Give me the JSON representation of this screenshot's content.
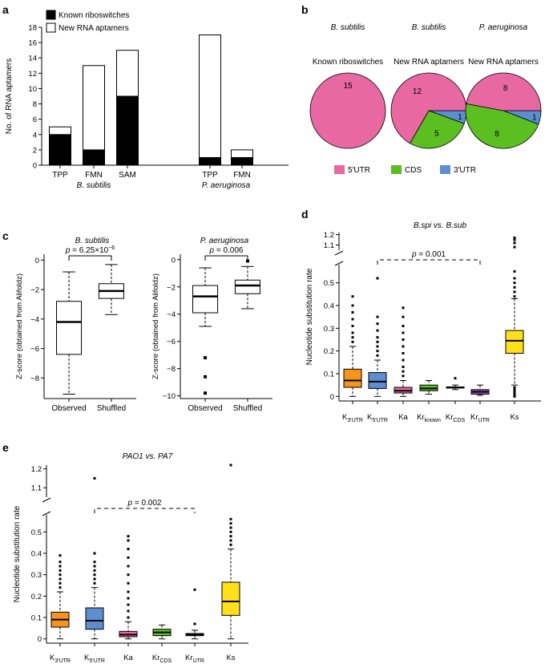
{
  "chart_data": [
    {
      "panel": "a",
      "type": "bar",
      "stacked": true,
      "ylabel": "No. of RNA aptamers",
      "ylim": [
        0,
        18
      ],
      "yticks": [
        0,
        2,
        4,
        6,
        8,
        10,
        12,
        14,
        16,
        18
      ],
      "legend": [
        "Known riboswitches",
        "New RNA aptamers"
      ],
      "legend_position": "top-left",
      "colors": {
        "known": "#000000",
        "new": "#ffffff"
      },
      "groups": [
        {
          "name": "B. subtilis",
          "categories": [
            "TPP",
            "FMN",
            "SAM"
          ]
        },
        {
          "name": "P. aeruginosa",
          "categories": [
            "TPP",
            "FMN"
          ]
        }
      ],
      "series": [
        {
          "name": "Known riboswitches",
          "values": [
            4,
            2,
            9,
            1,
            1
          ]
        },
        {
          "name": "New RNA aptamers",
          "values": [
            1,
            11,
            6,
            16,
            1
          ]
        }
      ]
    },
    {
      "panel": "b",
      "type": "pie",
      "colors": {
        "5'UTR": "#e868a2",
        "CDS": "#5bbf21",
        "3'UTR": "#5b8fcf"
      },
      "legend": [
        "5′UTR",
        "CDS",
        "3′UTR"
      ],
      "legend_position": "bottom",
      "pies": [
        {
          "species": "B. subtilis",
          "title": "Known riboswitches",
          "labels": [
            "5′UTR"
          ],
          "values": [
            15
          ]
        },
        {
          "species": "B. subtilis",
          "title": "New RNA aptamers",
          "labels": [
            "5′UTR",
            "CDS",
            "3′UTR"
          ],
          "values": [
            12,
            5,
            1
          ]
        },
        {
          "species": "P. aeruginosa",
          "title": "New RNA aptamers",
          "labels": [
            "5′UTR",
            "CDS",
            "3′UTR"
          ],
          "values": [
            8,
            8,
            1
          ]
        }
      ]
    },
    {
      "panel": "c",
      "type": "box",
      "ylabel": "Z-score (obtained from Alifoldz)",
      "categories": [
        "Observed",
        "Shuffled"
      ],
      "plots": [
        {
          "title": "B. subtilis",
          "ylim": [
            -9.4,
            0.4
          ],
          "yticks": [
            -8,
            -6,
            -4,
            -2,
            0
          ],
          "pvalue_prefix": "p",
          "pvalue_text": " = 6.25×10",
          "pvalue_exp": "−6",
          "boxes": [
            {
              "min": -9.1,
              "q1": -6.4,
              "median": -4.2,
              "q3": -2.8,
              "max": -0.8,
              "outliers": []
            },
            {
              "min": -3.7,
              "q1": -2.6,
              "median": -2.1,
              "q3": -1.6,
              "max": -0.3,
              "outliers": []
            }
          ]
        },
        {
          "title": "P. aeruginosa",
          "ylim": [
            -10.2,
            0.4
          ],
          "yticks": [
            -10,
            -8,
            -6,
            -4,
            -2,
            0
          ],
          "pvalue_prefix": "p",
          "pvalue_text": " = 0.006",
          "pvalue_exp": "",
          "boxes": [
            {
              "min": -4.9,
              "q1": -3.9,
              "median": -2.7,
              "q3": -1.9,
              "max": -0.6,
              "outliers": [
                -7.2,
                -8.6,
                -9.8
              ]
            },
            {
              "min": -3.6,
              "q1": -2.5,
              "median": -1.9,
              "q3": -1.5,
              "max": -0.5,
              "outliers": [
                -0.1
              ]
            }
          ]
        }
      ]
    },
    {
      "panel": "d",
      "type": "box",
      "title": "B.spi vs. B.sub",
      "ylabel": "Nucleotide substitution rate",
      "yticks_lower": [
        0,
        0.1,
        0.2,
        0.3,
        0.4,
        0.5
      ],
      "yticks_upper": [
        1.1,
        1.2
      ],
      "axis_break": [
        0.58,
        1.05
      ],
      "categories": [
        {
          "base": "K",
          "sub": "3′UTR"
        },
        {
          "base": "K",
          "sub": "5′UTR"
        },
        {
          "base": "Ka",
          "sub": ""
        },
        {
          "base": "Kr",
          "sub": "known"
        },
        {
          "base": "Kr",
          "sub": "CDS"
        },
        {
          "base": "Kr",
          "sub": "UTR"
        },
        {
          "base": "Ks",
          "sub": ""
        }
      ],
      "colors": [
        "#f7941d",
        "#5b8fcf",
        "#e868a2",
        "#5bbf21",
        "#ffffff",
        "#a855c8",
        "#ffe01a"
      ],
      "pvalue": {
        "prefix": "p",
        "text": " = 0.001",
        "from": 1,
        "to": 5
      },
      "boxes": [
        {
          "min": 0.0,
          "q1": 0.04,
          "median": 0.07,
          "q3": 0.12,
          "max": 0.22,
          "outliers": [
            0.24,
            0.26,
            0.28,
            0.31,
            0.34,
            0.37,
            0.4,
            0.44
          ]
        },
        {
          "min": 0.0,
          "q1": 0.035,
          "median": 0.065,
          "q3": 0.105,
          "max": 0.16,
          "outliers": [
            0.18,
            0.2,
            0.22,
            0.24,
            0.26,
            0.29,
            0.32,
            0.35,
            0.52
          ]
        },
        {
          "min": 0.0,
          "q1": 0.015,
          "median": 0.025,
          "q3": 0.04,
          "max": 0.07,
          "outliers": [
            0.09,
            0.11,
            0.13,
            0.16,
            0.19,
            0.22,
            0.25,
            0.28,
            0.31,
            0.35,
            0.39
          ]
        },
        {
          "min": 0.01,
          "q1": 0.025,
          "median": 0.035,
          "q3": 0.05,
          "max": 0.07,
          "outliers": []
        },
        {
          "min": 0.03,
          "q1": 0.04,
          "median": 0.04,
          "q3": 0.042,
          "max": 0.05,
          "outliers": [
            0.08
          ]
        },
        {
          "min": 0.005,
          "q1": 0.01,
          "median": 0.02,
          "q3": 0.03,
          "max": 0.05,
          "outliers": []
        },
        {
          "min": 0.05,
          "q1": 0.19,
          "median": 0.245,
          "q3": 0.29,
          "max": 0.43,
          "outliers": [
            0.0,
            0.01,
            0.02,
            0.03,
            0.04,
            0.44,
            0.46,
            0.48,
            0.5,
            0.52,
            0.55,
            1.08,
            1.12,
            1.15,
            1.17
          ]
        }
      ]
    },
    {
      "panel": "e",
      "type": "box",
      "title": "PAO1 vs. PA7",
      "ylabel": "Nucleotide substitution rate",
      "yticks_lower": [
        0,
        0.1,
        0.2,
        0.3,
        0.4,
        0.5
      ],
      "yticks_upper": [
        1.1,
        1.2
      ],
      "axis_break": [
        0.58,
        1.05
      ],
      "categories": [
        {
          "base": "K",
          "sub": "3′UTR"
        },
        {
          "base": "K",
          "sub": "5′UTR"
        },
        {
          "base": "Ka",
          "sub": ""
        },
        {
          "base": "Kr",
          "sub": "CDS"
        },
        {
          "base": "Kr",
          "sub": "UTR"
        },
        {
          "base": "Ks",
          "sub": ""
        }
      ],
      "colors": [
        "#f7941d",
        "#5b8fcf",
        "#e868a2",
        "#5bbf21",
        "#e8554e",
        "#ffe01a"
      ],
      "pvalue": {
        "prefix": "p",
        "text": " = 0.002",
        "from": 1,
        "to": 4
      },
      "boxes": [
        {
          "min": 0.0,
          "q1": 0.055,
          "median": 0.09,
          "q3": 0.125,
          "max": 0.22,
          "outliers": [
            0.24,
            0.26,
            0.28,
            0.3,
            0.32,
            0.34,
            0.36,
            0.39
          ]
        },
        {
          "min": 0.0,
          "q1": 0.045,
          "median": 0.085,
          "q3": 0.145,
          "max": 0.24,
          "outliers": [
            0.26,
            0.28,
            0.3,
            0.32,
            0.34,
            0.36,
            0.4,
            1.15
          ]
        },
        {
          "min": 0.0,
          "q1": 0.01,
          "median": 0.02,
          "q3": 0.035,
          "max": 0.08,
          "outliers": [
            0.1,
            0.13,
            0.16,
            0.19,
            0.22,
            0.26,
            0.3,
            0.34,
            0.38,
            0.42,
            0.46,
            0.48
          ]
        },
        {
          "min": 0.0,
          "q1": 0.015,
          "median": 0.03,
          "q3": 0.045,
          "max": 0.065,
          "outliers": []
        },
        {
          "min": 0.0,
          "q1": 0.015,
          "median": 0.02,
          "q3": 0.025,
          "max": 0.04,
          "outliers": [
            0.07,
            0.23
          ]
        },
        {
          "min": 0.0,
          "q1": 0.11,
          "median": 0.175,
          "q3": 0.265,
          "max": 0.42,
          "outliers": [
            0.44,
            0.46,
            0.48,
            0.5,
            0.52,
            0.54,
            0.56,
            1.22
          ]
        }
      ]
    }
  ]
}
